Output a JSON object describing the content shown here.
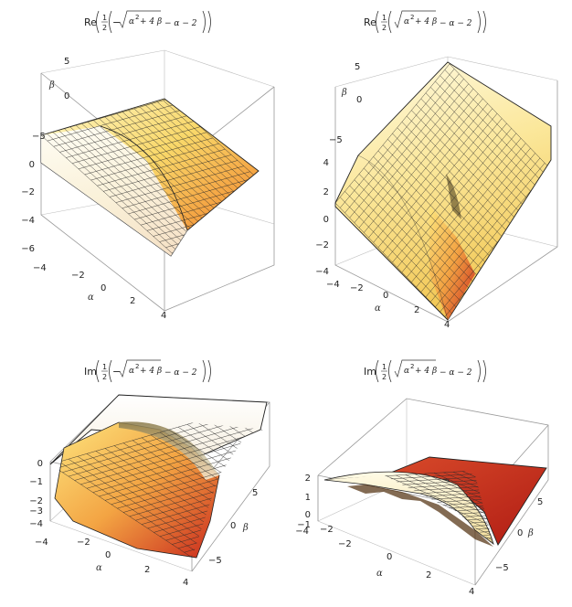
{
  "chart_data": [
    {
      "type": "surface3d",
      "title": {
        "prefix": "Re",
        "frac_num": "1",
        "frac_den": "2",
        "sign": "−",
        "rad_a": "α",
        "rad_exp": "2",
        "rad_rest": "+ 4 β",
        "tail": "− α − 2"
      },
      "xlabel": "α",
      "ylabel": "β",
      "x_ticks": [
        "−4",
        "−2",
        "0",
        "2",
        "4"
      ],
      "y_ticks": [
        "5",
        "0",
        "−5"
      ],
      "z_ticks": [
        "0",
        "−2",
        "−4",
        "−6"
      ],
      "xlim": [
        -4,
        4
      ],
      "ylim": [
        -6,
        6
      ],
      "zlim": [
        -6.5,
        0
      ]
    },
    {
      "type": "surface3d",
      "title": {
        "prefix": "Re",
        "frac_num": "1",
        "frac_den": "2",
        "sign": "",
        "rad_a": "α",
        "rad_exp": "2",
        "rad_rest": "+ 4 β",
        "tail": "− α − 2"
      },
      "xlabel": "α",
      "ylabel": "β",
      "x_ticks": [
        "−4",
        "−2",
        "0",
        "2",
        "4"
      ],
      "y_ticks": [
        "5",
        "0",
        "−5"
      ],
      "z_ticks": [
        "4",
        "2",
        "0",
        "−2",
        "−4"
      ],
      "xlim": [
        -4,
        4
      ],
      "ylim": [
        -6,
        6
      ],
      "zlim": [
        -4.5,
        4.5
      ]
    },
    {
      "type": "surface3d",
      "title": {
        "prefix": "Im",
        "frac_num": "1",
        "frac_den": "2",
        "sign": "−",
        "rad_a": "α",
        "rad_exp": "2",
        "rad_rest": "+ 4 β",
        "tail": "− α − 2"
      },
      "xlabel": "α",
      "ylabel": "β",
      "x_ticks": [
        "−4",
        "−2",
        "0",
        "2",
        "4"
      ],
      "y_ticks": [
        "5",
        "0",
        "−5"
      ],
      "z_ticks": [
        "0",
        "−1",
        "−2",
        "−3",
        "−4"
      ],
      "xlim": [
        -4,
        4
      ],
      "ylim": [
        -6,
        6
      ],
      "zlim": [
        -4.5,
        0
      ]
    },
    {
      "type": "surface3d",
      "title": {
        "prefix": "Im",
        "frac_num": "1",
        "frac_den": "2",
        "sign": "",
        "rad_a": "α",
        "rad_exp": "2",
        "rad_rest": "+ 4 β",
        "tail": "− α − 2"
      },
      "xlabel": "α",
      "ylabel": "β",
      "x_ticks": [
        "−4",
        "−2",
        "0",
        "2",
        "4"
      ],
      "y_ticks": [
        "5",
        "0",
        "−5"
      ],
      "z_ticks": [
        "2",
        "1",
        "0",
        "−1",
        "−2",
        "−4"
      ],
      "xlim": [
        -4,
        4
      ],
      "ylim": [
        -6,
        6
      ],
      "zlim": [
        -4,
        2.5
      ]
    }
  ]
}
